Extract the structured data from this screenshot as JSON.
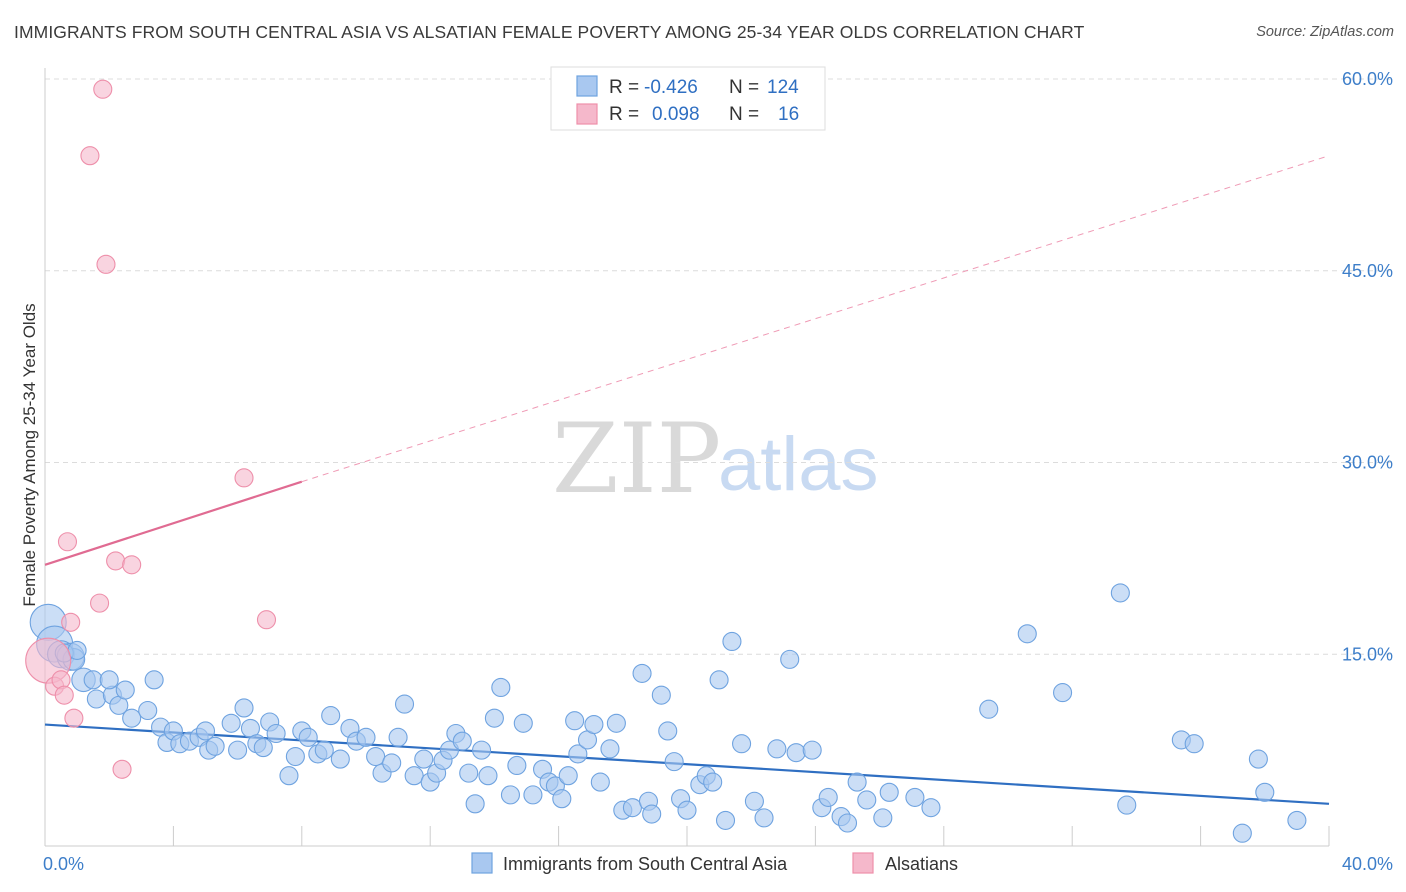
{
  "header": {
    "title": "IMMIGRANTS FROM SOUTH CENTRAL ASIA VS ALSATIAN FEMALE POVERTY AMONG 25-34 YEAR OLDS CORRELATION CHART",
    "source": "Source: ZipAtlas.com"
  },
  "watermark": {
    "zip": "ZIP",
    "atlas": "atlas"
  },
  "stats_legend": {
    "rows": [
      {
        "r_label": "R =",
        "r_value": "-0.426",
        "n_label": "N =",
        "n_value": "124",
        "color": "#a9c8f0"
      },
      {
        "r_label": "R =",
        "r_value": "0.098",
        "n_label": "N =",
        "n_value": "16",
        "color": "#f5b8cb"
      }
    ]
  },
  "bottom_legend": {
    "items": [
      {
        "label": "Immigrants from South Central Asia",
        "color": "#a9c8f0"
      },
      {
        "label": "Alsatians",
        "color": "#f5b8cb"
      }
    ]
  },
  "chart_data": {
    "type": "scatter",
    "title": "IMMIGRANTS FROM SOUTH CENTRAL ASIA VS ALSATIAN FEMALE POVERTY AMONG 25-34 YEAR OLDS CORRELATION CHART",
    "xlabel": "",
    "ylabel": "Female Poverty Among 25-34 Year Olds",
    "xlim": [
      0,
      40
    ],
    "ylim": [
      0,
      60
    ],
    "x_tick_labels": [
      "0.0%",
      "40.0%"
    ],
    "y_ticks": [
      15,
      30,
      45,
      60
    ],
    "y_tick_labels": [
      "15.0%",
      "30.0%",
      "45.0%",
      "60.0%"
    ],
    "grid": "horizontal dashed",
    "colors": {
      "blue": "#6fa3e0",
      "blue_fill": "#a9c8f0",
      "blue_line": "#2f6fc2",
      "pink": "#ee8faa",
      "pink_fill": "#f5b8cb",
      "pink_line": "#e06b92"
    },
    "series": [
      {
        "name": "Immigrants from South Central Asia",
        "trend": {
          "x": [
            0,
            40
          ],
          "y": [
            9.5,
            3.3
          ]
        },
        "points": [
          [
            0.1,
            17.5,
            2
          ],
          [
            0.3,
            15.8,
            2
          ],
          [
            0.5,
            15.0,
            1.5
          ],
          [
            0.8,
            14.8,
            1.5
          ],
          [
            0.9,
            14.6,
            1.2
          ],
          [
            1.2,
            13.0,
            1.3
          ],
          [
            1.5,
            13.0,
            1
          ],
          [
            1.6,
            11.5,
            1
          ],
          [
            2.1,
            11.8,
            1
          ],
          [
            2.3,
            11.0,
            1
          ],
          [
            2.5,
            12.2,
            1
          ],
          [
            2.7,
            10.0,
            1
          ],
          [
            3.2,
            10.6,
            1
          ],
          [
            3.4,
            13.0,
            1
          ],
          [
            3.6,
            9.3,
            1
          ],
          [
            3.8,
            8.1,
            1
          ],
          [
            4.0,
            9.0,
            1
          ],
          [
            4.2,
            8.0,
            1
          ],
          [
            4.5,
            8.2,
            1
          ],
          [
            4.8,
            8.5,
            1
          ],
          [
            5.0,
            9.0,
            1
          ],
          [
            5.1,
            7.5,
            1
          ],
          [
            5.3,
            7.8,
            1
          ],
          [
            5.8,
            9.6,
            1
          ],
          [
            6.0,
            7.5,
            1
          ],
          [
            6.2,
            10.8,
            1
          ],
          [
            6.4,
            9.2,
            1
          ],
          [
            6.6,
            8.0,
            1
          ],
          [
            6.8,
            7.7,
            1
          ],
          [
            7.0,
            9.7,
            1
          ],
          [
            7.2,
            8.8,
            1
          ],
          [
            7.6,
            5.5,
            1
          ],
          [
            7.8,
            7.0,
            1
          ],
          [
            8.0,
            9.0,
            1
          ],
          [
            8.2,
            8.5,
            1
          ],
          [
            8.5,
            7.2,
            1
          ],
          [
            8.7,
            7.5,
            1
          ],
          [
            8.9,
            10.2,
            1
          ],
          [
            9.2,
            6.8,
            1
          ],
          [
            9.5,
            9.2,
            1
          ],
          [
            9.7,
            8.2,
            1
          ],
          [
            10.0,
            8.5,
            1
          ],
          [
            10.3,
            7.0,
            1
          ],
          [
            10.5,
            5.7,
            1
          ],
          [
            10.8,
            6.5,
            1
          ],
          [
            11.0,
            8.5,
            1
          ],
          [
            11.2,
            11.1,
            1
          ],
          [
            11.5,
            5.5,
            1
          ],
          [
            11.8,
            6.8,
            1
          ],
          [
            12.0,
            5.0,
            1
          ],
          [
            12.2,
            5.7,
            1
          ],
          [
            12.4,
            6.7,
            1
          ],
          [
            12.6,
            7.5,
            1
          ],
          [
            12.8,
            8.8,
            1
          ],
          [
            13.0,
            8.2,
            1
          ],
          [
            13.2,
            5.7,
            1
          ],
          [
            13.4,
            3.3,
            1
          ],
          [
            13.6,
            7.5,
            1
          ],
          [
            13.8,
            5.5,
            1
          ],
          [
            14.0,
            10.0,
            1
          ],
          [
            14.2,
            12.4,
            1
          ],
          [
            14.5,
            4.0,
            1
          ],
          [
            14.7,
            6.3,
            1
          ],
          [
            14.9,
            9.6,
            1
          ],
          [
            15.2,
            4.0,
            1
          ],
          [
            15.5,
            6.0,
            1
          ],
          [
            15.7,
            5.0,
            1
          ],
          [
            15.9,
            4.7,
            1
          ],
          [
            16.1,
            3.7,
            1
          ],
          [
            16.3,
            5.5,
            1
          ],
          [
            16.5,
            9.8,
            1
          ],
          [
            16.6,
            7.2,
            1
          ],
          [
            16.9,
            8.3,
            1
          ],
          [
            17.1,
            9.5,
            1
          ],
          [
            17.3,
            5.0,
            1
          ],
          [
            17.6,
            7.6,
            1
          ],
          [
            17.8,
            9.6,
            1
          ],
          [
            18.0,
            2.8,
            1
          ],
          [
            18.3,
            3.0,
            1
          ],
          [
            18.6,
            13.5,
            1
          ],
          [
            18.8,
            3.5,
            1
          ],
          [
            18.9,
            2.5,
            1
          ],
          [
            19.2,
            11.8,
            1
          ],
          [
            19.4,
            9.0,
            1
          ],
          [
            19.6,
            6.6,
            1
          ],
          [
            19.8,
            3.7,
            1
          ],
          [
            20.0,
            2.8,
            1
          ],
          [
            20.4,
            4.8,
            1
          ],
          [
            20.6,
            5.5,
            1
          ],
          [
            20.8,
            5.0,
            1
          ],
          [
            21.0,
            13.0,
            1
          ],
          [
            21.2,
            2.0,
            1
          ],
          [
            21.4,
            16.0,
            1
          ],
          [
            21.7,
            8.0,
            1
          ],
          [
            22.1,
            3.5,
            1
          ],
          [
            22.4,
            2.2,
            1
          ],
          [
            22.8,
            7.6,
            1
          ],
          [
            23.2,
            14.6,
            1
          ],
          [
            23.4,
            7.3,
            1
          ],
          [
            23.9,
            7.5,
            1
          ],
          [
            24.2,
            3.0,
            1
          ],
          [
            24.4,
            3.8,
            1
          ],
          [
            24.8,
            2.3,
            1
          ],
          [
            25.0,
            1.8,
            1
          ],
          [
            25.3,
            5.0,
            1
          ],
          [
            25.6,
            3.6,
            1
          ],
          [
            26.1,
            2.2,
            1
          ],
          [
            26.3,
            4.2,
            1
          ],
          [
            27.1,
            3.8,
            1
          ],
          [
            27.6,
            3.0,
            1
          ],
          [
            29.4,
            10.7,
            1
          ],
          [
            30.6,
            16.6,
            1
          ],
          [
            31.7,
            12.0,
            1
          ],
          [
            33.5,
            19.8,
            1
          ],
          [
            33.7,
            3.2,
            1
          ],
          [
            35.4,
            8.3,
            1
          ],
          [
            35.8,
            8.0,
            1
          ],
          [
            37.3,
            1.0,
            1
          ],
          [
            37.8,
            6.8,
            1
          ],
          [
            38.0,
            4.2,
            1
          ],
          [
            39.0,
            2.0,
            1
          ],
          [
            0.6,
            15.1,
            1
          ],
          [
            1.0,
            15.3,
            1
          ],
          [
            2.0,
            13.0,
            1
          ]
        ]
      },
      {
        "name": "Alsatians",
        "trend": {
          "x": [
            0,
            8
          ],
          "y": [
            22.0,
            28.5
          ],
          "x_extended": [
            8,
            40
          ],
          "y_extended": [
            28.5,
            54.0
          ]
        },
        "points": [
          [
            0.1,
            14.5,
            2.5
          ],
          [
            0.3,
            12.5,
            1
          ],
          [
            0.5,
            13.0,
            1
          ],
          [
            0.6,
            11.8,
            1
          ],
          [
            0.7,
            23.8,
            1
          ],
          [
            0.8,
            17.5,
            1
          ],
          [
            0.9,
            10.0,
            1
          ],
          [
            1.4,
            54.0,
            1
          ],
          [
            1.7,
            19.0,
            1
          ],
          [
            1.9,
            45.5,
            1
          ],
          [
            2.2,
            22.3,
            1
          ],
          [
            2.4,
            6.0,
            1
          ],
          [
            2.7,
            22.0,
            1
          ],
          [
            1.8,
            59.2,
            1
          ],
          [
            6.2,
            28.8,
            1
          ],
          [
            6.9,
            17.7,
            1
          ]
        ]
      }
    ]
  }
}
